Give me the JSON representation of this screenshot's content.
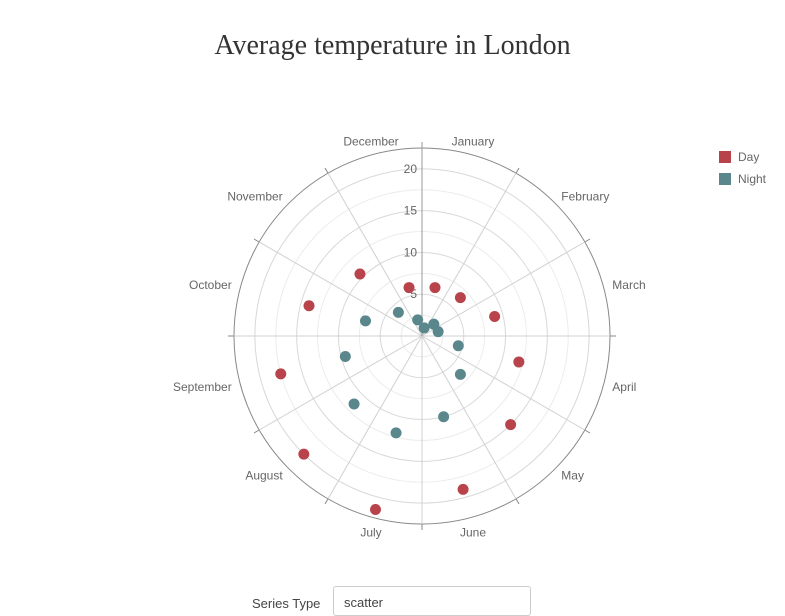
{
  "chart_data": {
    "type": "scatter",
    "title": "Average temperature in London",
    "coordinate_system": "polar",
    "categories": [
      "January",
      "February",
      "March",
      "April",
      "May",
      "June",
      "July",
      "August",
      "September",
      "October",
      "November",
      "December"
    ],
    "radial_axis": {
      "ticks": [
        5,
        10,
        15,
        20
      ],
      "range": [
        0,
        22.5
      ]
    },
    "series": [
      {
        "name": "Day",
        "color": "#b8434b",
        "values": [
          6.0,
          6.5,
          9.0,
          12.0,
          15.0,
          19.0,
          21.5,
          20.0,
          17.5,
          14.0,
          10.5,
          6.0
        ]
      },
      {
        "name": "Night",
        "color": "#5a878c",
        "values": [
          1.0,
          2.0,
          2.0,
          4.5,
          6.5,
          10.0,
          12.0,
          11.5,
          9.5,
          7.0,
          4.0,
          2.0
        ]
      }
    ],
    "legend_position": "top-right",
    "grid": true
  },
  "controls": {
    "series_type_label": "Series Type",
    "series_type_value": "scatter"
  }
}
